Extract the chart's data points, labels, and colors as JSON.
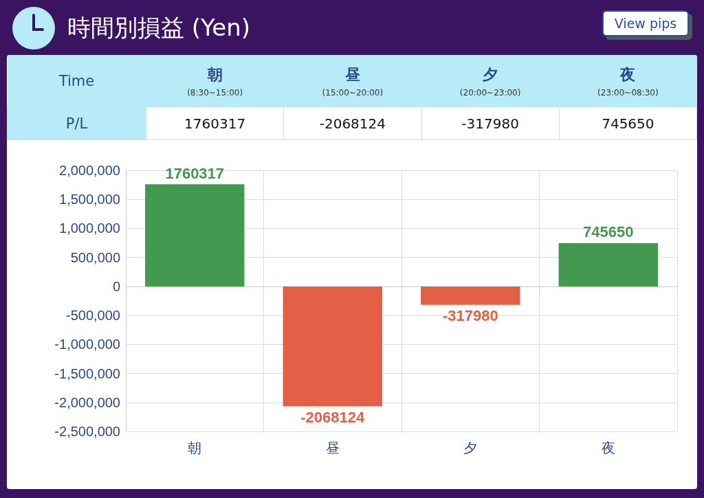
{
  "chart_data": {
    "type": "bar",
    "title": "時間別損益 (Yen)",
    "categories": [
      "朝",
      "昼",
      "夕",
      "夜"
    ],
    "values": [
      1760317,
      -2068124,
      -317980,
      745650
    ],
    "colors": [
      "#43994f",
      "#e35f45",
      "#e35f45",
      "#43994f"
    ],
    "ylim": [
      -2500000,
      2000000
    ],
    "yticks": [
      {
        "value": -2500000,
        "label": "-2,500,000"
      },
      {
        "value": -2000000,
        "label": "-2,000,000"
      },
      {
        "value": -1500000,
        "label": "-1,500,000"
      },
      {
        "value": -1000000,
        "label": "-1,000,000"
      },
      {
        "value": -500000,
        "label": "-500,000"
      },
      0,
      {
        "value": 500000,
        "label": "500,000"
      },
      {
        "value": 1000000,
        "label": "1,000,000"
      },
      {
        "value": 1500000,
        "label": "1,500,000"
      },
      {
        "value": 2000000,
        "label": "2,000,000"
      }
    ],
    "grid": true,
    "value_labels": [
      "1760317",
      "-2068124",
      "-317980",
      "745650"
    ],
    "annotations": [
      "View pips",
      "Time",
      "P/L",
      "(8:30~15:00)",
      "(15:00~20:00)",
      "(20:00~23:00)",
      "(23:00~08:30)"
    ]
  }
}
